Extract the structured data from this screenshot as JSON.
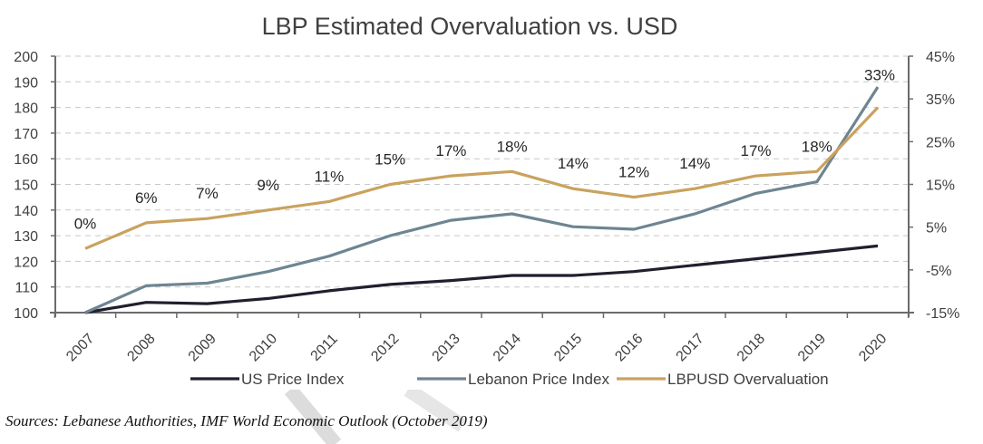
{
  "chart_data": {
    "type": "line",
    "title": "LBP Estimated Overvaluation vs. USD",
    "xlabel": "",
    "ylabel": "",
    "y2label": "",
    "categories": [
      "2007",
      "2008",
      "2009",
      "2010",
      "2011",
      "2012",
      "2013",
      "2014",
      "2015",
      "2016",
      "2017",
      "2018",
      "2019",
      "2020"
    ],
    "ylim": [
      100,
      200
    ],
    "yticks": [
      100,
      110,
      120,
      130,
      140,
      150,
      160,
      170,
      180,
      190,
      200
    ],
    "y2lim": [
      -15,
      45
    ],
    "y2ticks": [
      -15,
      -5,
      5,
      15,
      25,
      35,
      45
    ],
    "y2tick_labels": [
      "-15%",
      "-5%",
      "5%",
      "15%",
      "25%",
      "35%",
      "45%"
    ],
    "grid": true,
    "legend_position": "bottom",
    "series": [
      {
        "name": "US Price Index",
        "axis": "left",
        "color": "#1f1f2e",
        "values": [
          100,
          104,
          103.5,
          105.5,
          108.5,
          111,
          112.5,
          114.5,
          114.5,
          116,
          118.5,
          121,
          123.5,
          126
        ]
      },
      {
        "name": "Lebanon Price Index",
        "axis": "left",
        "color": "#6e8592",
        "values": [
          100,
          110.5,
          111.5,
          116,
          122,
          130,
          136,
          138.5,
          133.5,
          132.5,
          138.5,
          146.5,
          151,
          188
        ]
      },
      {
        "name": "LBPUSD Overvaluation",
        "axis": "right",
        "color": "#c9a25e",
        "values": [
          0,
          6,
          7,
          9,
          11,
          15,
          17,
          18,
          14,
          12,
          14,
          17,
          18,
          33
        ],
        "data_labels": [
          "0%",
          "6%",
          "7%",
          "9%",
          "11%",
          "15%",
          "17%",
          "18%",
          "14%",
          "12%",
          "14%",
          "17%",
          "18%",
          "33%"
        ]
      }
    ]
  },
  "source_note": "Sources: Lebanese Authorities, IMF World Economic Outlook (October 2019)"
}
